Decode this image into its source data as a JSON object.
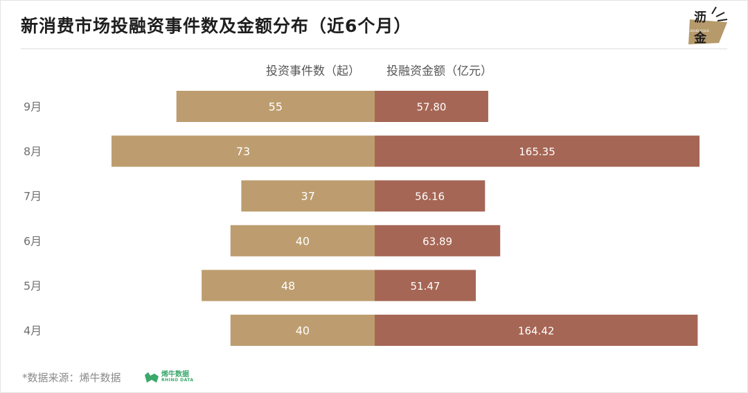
{
  "title": "新消费市场投融资事件数及金额分布（近6个月）",
  "logo": {
    "text_line1": "沥",
    "text_line2": "金",
    "subtext": "LIQUID GOLD",
    "color": "#b69a6b"
  },
  "headers": {
    "left": "投资事件数（起）",
    "right": "投融资金额（亿元）"
  },
  "chart_data": {
    "type": "bar",
    "orientation": "horizontal-butterfly",
    "categories": [
      "9月",
      "8月",
      "7月",
      "6月",
      "5月",
      "4月"
    ],
    "series": [
      {
        "name": "投资事件数（起）",
        "side": "left",
        "color": "#bd9d6f",
        "values": [
          55,
          73,
          37,
          40,
          48,
          40
        ],
        "labels": [
          "55",
          "73",
          "37",
          "40",
          "48",
          "40"
        ]
      },
      {
        "name": "投融资金额（亿元）",
        "side": "right",
        "color": "#a66655",
        "values": [
          57.8,
          165.35,
          56.16,
          63.89,
          51.47,
          164.42
        ],
        "labels": [
          "57.80",
          "165.35",
          "56.16",
          "63.89",
          "51.47",
          "164.42"
        ]
      }
    ],
    "grid": false,
    "legend": "top"
  },
  "footer": {
    "source": "*数据来源：烯牛数据",
    "brand_cn": "烯牛数据",
    "brand_en": "RHINO DATA",
    "brand_color": "#3aa86b"
  }
}
